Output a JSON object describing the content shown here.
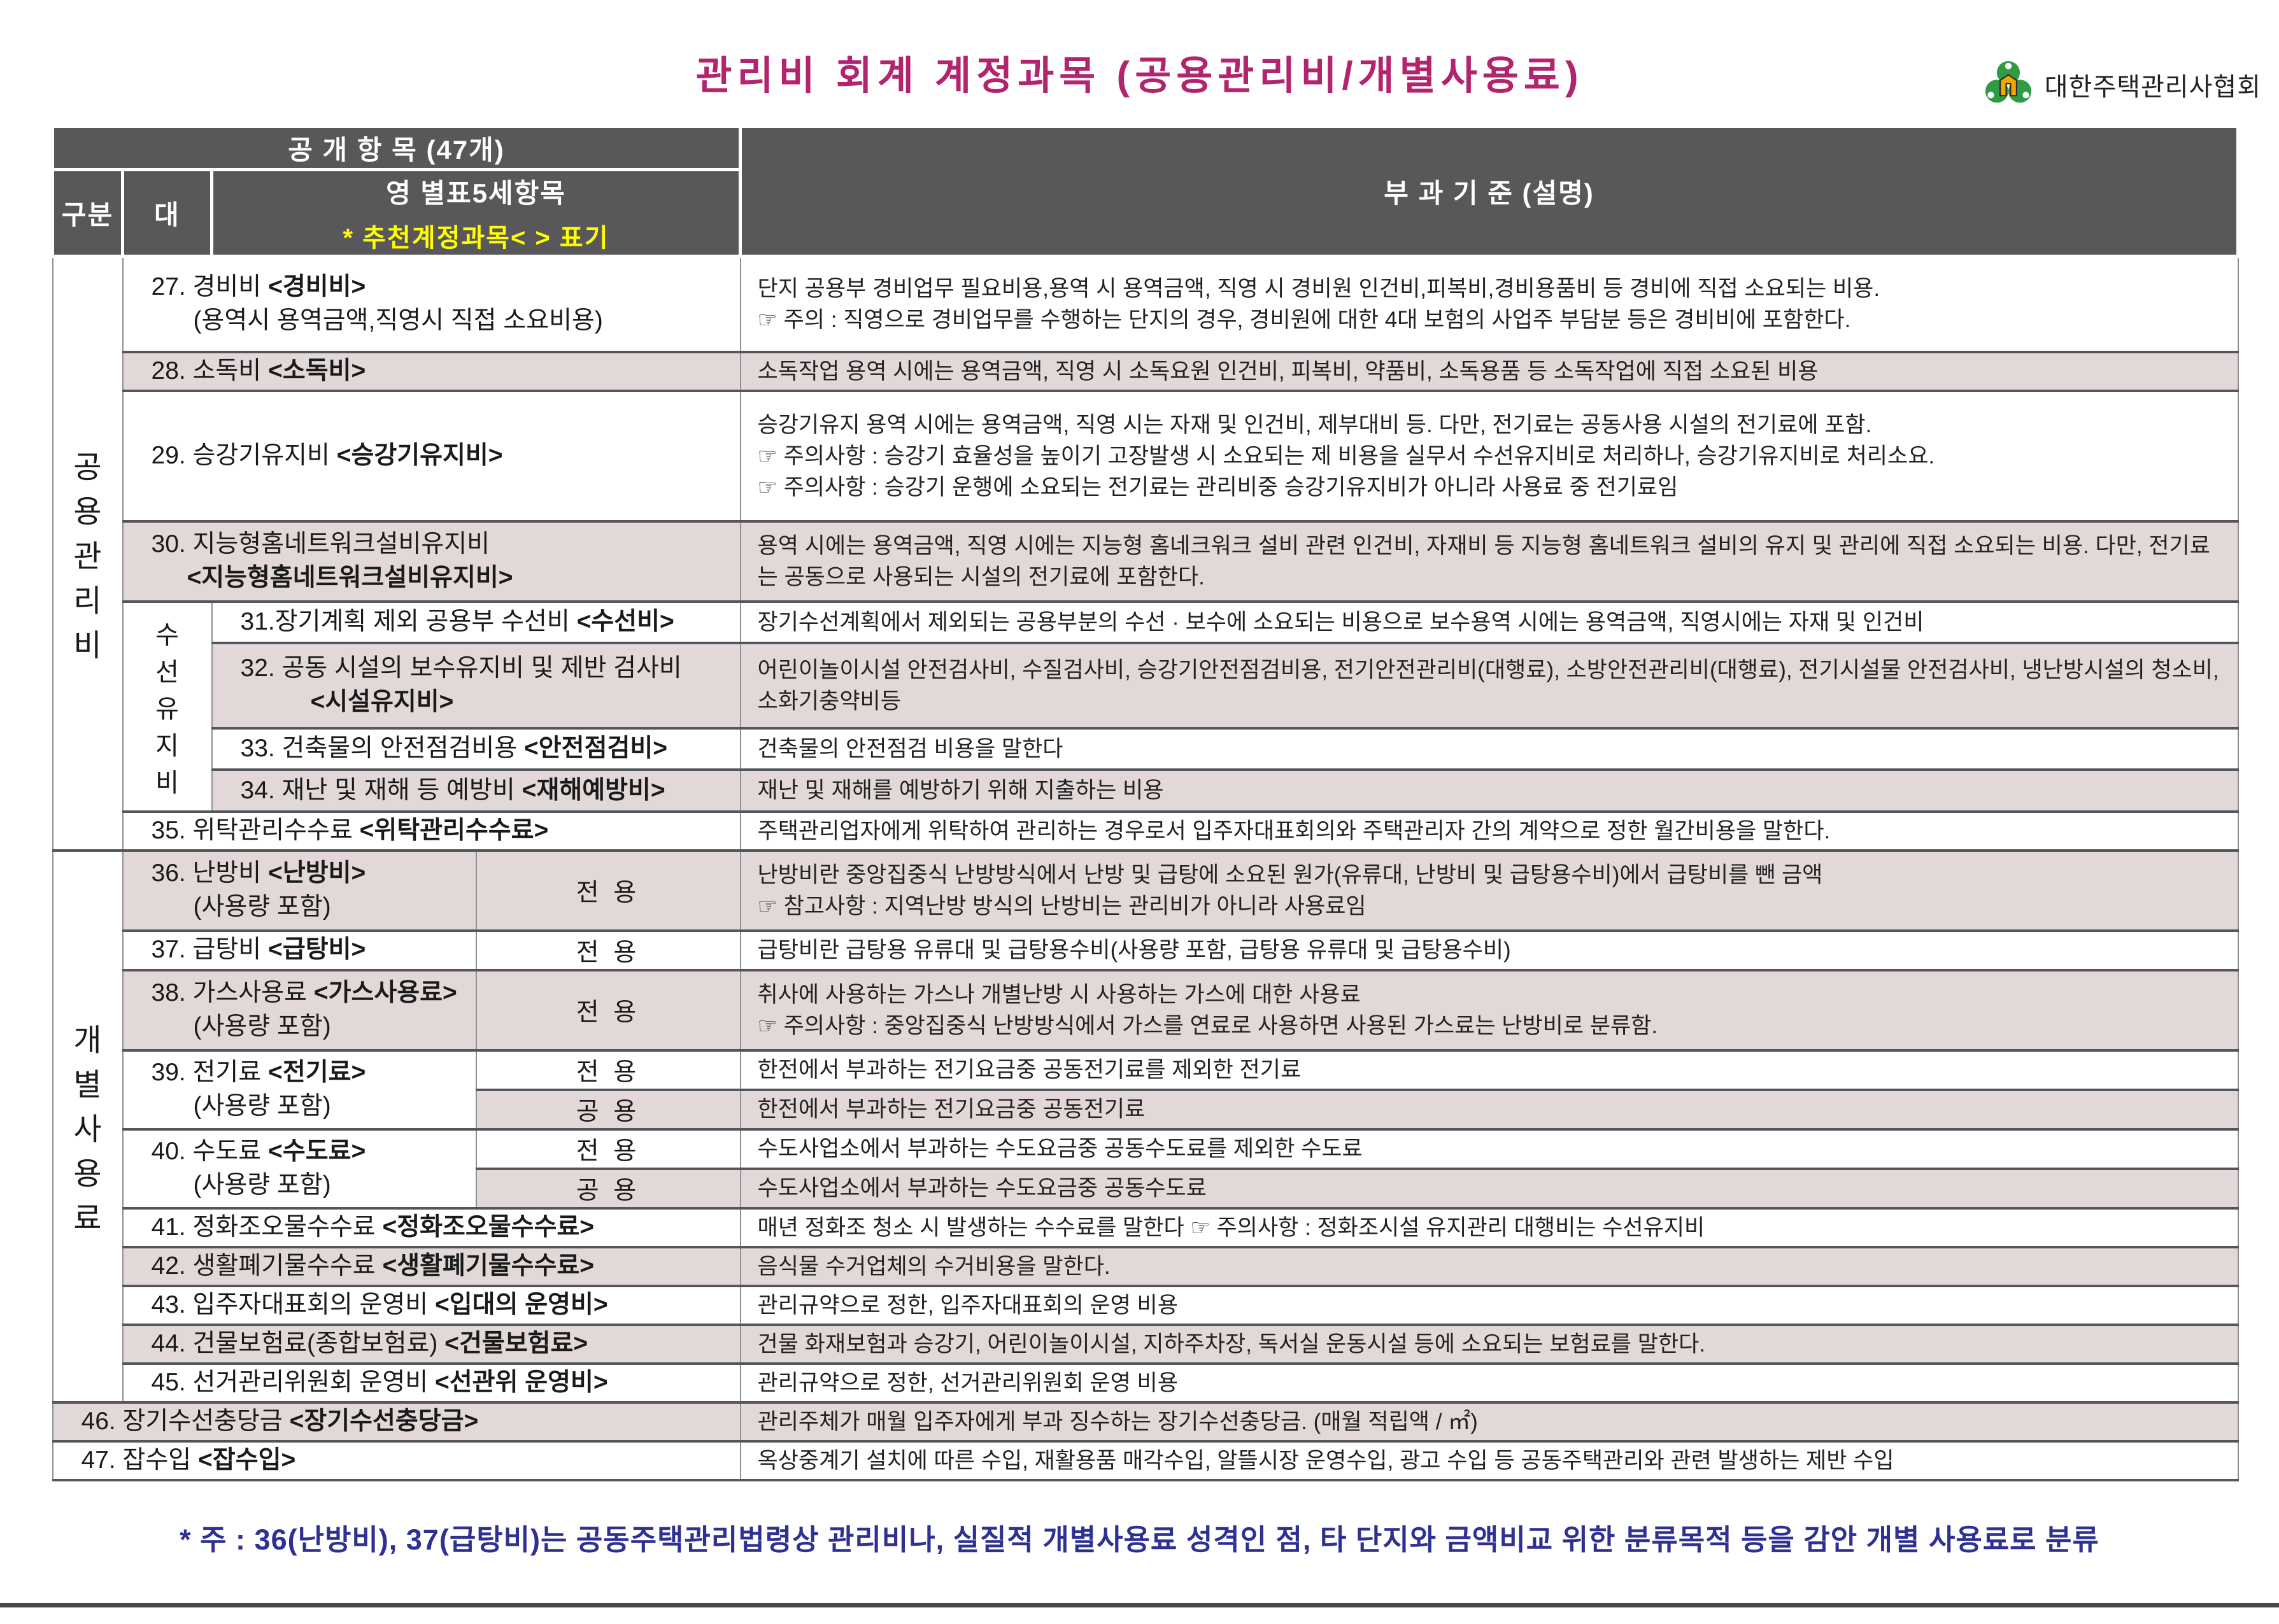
{
  "title": "관리비 회계 계정과목 (공용관리비/개별사용료)",
  "logo": {
    "org": "대한주택관리사협회"
  },
  "header": {
    "open_items": "공 개 항 목 (47개)",
    "col_gubun": "구분",
    "col_dae": "대",
    "col_detail_line1": "영  별표5세항목",
    "col_detail_line2": "* 추천계정과목<  > 표기",
    "col_basis": "부  과  기  준 (설명)"
  },
  "groups": {
    "common": "공용관리비",
    "individual": "개별사용료",
    "repair": "수선유지비"
  },
  "usage": {
    "exclusive": "전  용",
    "common": "공  용"
  },
  "rows": {
    "r27": {
      "label": "27. 경비비",
      "tag": "<경비비>",
      "sub": "(용역시 용역금액,직영시 직접 소요비용)",
      "desc1": "단지 공용부 경비업무 필요비용,용역 시 용역금액, 직영 시 경비원 인건비,피복비,경비용품비 등 경비에 직접 소요되는 비용.",
      "desc2": "☞ 주의 : 직영으로 경비업무를 수행하는 단지의 경우, 경비원에 대한 4대 보험의 사업주 부담분 등은 경비비에 포함한다."
    },
    "r28": {
      "label": "28. 소독비",
      "tag": "<소독비>",
      "desc1": "소독작업 용역 시에는 용역금액, 직영 시 소독요원 인건비, 피복비, 약품비, 소독용품 등 소독작업에 직접 소요된 비용"
    },
    "r29": {
      "label": "29. 승강기유지비",
      "tag": "<승강기유지비>",
      "desc1": "승강기유지 용역 시에는 용역금액, 직영 시는 자재 및 인건비, 제부대비 등. 다만, 전기료는 공동사용 시설의 전기료에 포함.",
      "desc2": "☞ 주의사항 : 승강기 효율성을 높이기 고장발생 시 소요되는 제 비용을 실무서 수선유지비로 처리하나, 승강기유지비로 처리소요.",
      "desc3": "☞ 주의사항 : 승강기 운행에 소요되는 전기료는 관리비중 승강기유지비가 아니라 사용료 중 전기료임"
    },
    "r30": {
      "label": "30. 지능형홈네트워크설비유지비",
      "tag2": "<지능형홈네트워크설비유지비>",
      "desc1": "용역 시에는 용역금액, 직영 시에는 지능형 홈네크워크 설비 관련 인건비, 자재비 등 지능형 홈네트워크 설비의 유지 및 관리에 직접 소요되는 비용. 다만, 전기료는 공동으로 사용되는 시설의 전기료에 포함한다."
    },
    "r31": {
      "label": "31.장기계획 제외 공용부 수선비",
      "tag": "<수선비>",
      "desc1": "장기수선계획에서 제외되는 공용부분의 수선 · 보수에 소요되는 비용으로 보수용역 시에는 용역금액, 직영시에는 자재 및 인건비"
    },
    "r32": {
      "label": "32. 공동 시설의 보수유지비 및 제반 검사비",
      "tag2": "<시설유지비>",
      "desc1": "어린이놀이시설 안전검사비, 수질검사비, 승강기안전점검비용, 전기안전관리비(대행료), 소방안전관리비(대행료), 전기시설물 안전검사비, 냉난방시설의 청소비, 소화기충약비등"
    },
    "r33": {
      "label": "33. 건축물의 안전점검비용",
      "tag": "<안전점검비>",
      "desc1": "건축물의 안전점검 비용을 말한다"
    },
    "r34": {
      "label": "34. 재난 및 재해 등 예방비",
      "tag": "<재해예방비>",
      "desc1": "재난 및 재해를 예방하기 위해 지출하는 비용"
    },
    "r35": {
      "label": "35. 위탁관리수수료",
      "tag": "<위탁관리수수료>",
      "desc1": "주택관리업자에게 위탁하여 관리하는 경우로서 입주자대표회의와 주택관리자 간의 계약으로 정한 월간비용을 말한다."
    },
    "r36": {
      "label": "36. 난방비",
      "tag": "<난방비>",
      "sub": "(사용량 포함)",
      "desc1": "난방비란 중앙집중식 난방방식에서 난방 및 급탕에 소요된 원가(유류대, 난방비 및 급탕용수비)에서 급탕비를 뺀 금액",
      "desc2": "☞ 참고사항 : 지역난방 방식의 난방비는 관리비가 아니라 사용료임"
    },
    "r37": {
      "label": "37. 급탕비",
      "tag": "<급탕비>",
      "desc1": "급탕비란 급탕용 유류대 및 급탕용수비(사용량 포함, 급탕용 유류대 및 급탕용수비)"
    },
    "r38": {
      "label": "38. 가스사용료",
      "tag": "<가스사용료>",
      "sub": "(사용량 포함)",
      "desc1": "취사에 사용하는 가스나 개별난방 시 사용하는 가스에 대한 사용료",
      "desc2": "☞ 주의사항 : 중앙집중식 난방방식에서 가스를 연료로 사용하면 사용된 가스료는 난방비로 분류함."
    },
    "r39": {
      "label": "39. 전기료",
      "tag": "<전기료>",
      "sub": "(사용량 포함)",
      "desc_exclusive": "한전에서 부과하는 전기요금중 공동전기료를 제외한 전기료",
      "desc_common": "한전에서 부과하는 전기요금중 공동전기료"
    },
    "r40": {
      "label": "40. 수도료",
      "tag": "<수도료>",
      "sub": "(사용량 포함)",
      "desc_exclusive": "수도사업소에서 부과하는 수도요금중 공동수도료를 제외한 수도료",
      "desc_common": "수도사업소에서 부과하는 수도요금중 공동수도료"
    },
    "r41": {
      "label": "41. 정화조오물수수료",
      "tag": "<정화조오물수수료>",
      "desc1": "매년 정화조 청소 시 발생하는 수수료를 말한다  ☞ 주의사항 : 정화조시설 유지관리 대행비는 수선유지비"
    },
    "r42": {
      "label": "42. 생활폐기물수수료",
      "tag": "<생활폐기물수수료>",
      "desc1": "음식물 수거업체의 수거비용을 말한다."
    },
    "r43": {
      "label": "43. 입주자대표회의 운영비",
      "tag": "<입대의 운영비>",
      "desc1": "관리규약으로 정한, 입주자대표회의 운영 비용"
    },
    "r44": {
      "label": "44. 건물보험료(종합보험료)",
      "tag": "<건물보험료>",
      "desc1": "건물 화재보험과 승강기, 어린이놀이시설, 지하주차장, 독서실 운동시설 등에 소요되는 보험료를 말한다."
    },
    "r45": {
      "label": "45. 선거관리위원회 운영비",
      "tag": "<선관위 운영비>",
      "desc1": "관리규약으로 정한, 선거관리위원회 운영 비용"
    },
    "r46": {
      "label": "46. 장기수선충당금",
      "tag": "<장기수선충당금>",
      "desc1": "관리주체가 매월 입주자에게 부과 징수하는 장기수선충당금. (매월 적립액 / ㎡)"
    },
    "r47": {
      "label": "47. 잡수입",
      "tag": "<잡수입>",
      "desc1": "옥상중계기 설치에 따른 수입, 재활용품 매각수입, 알뜰시장 운영수입, 광고 수입 등 공동주택관리와 관련 발생하는 제반 수입"
    }
  },
  "footnote": "* 주 : 36(난방비), 37(급탕비)는 공동주택관리법령상 관리비나, 실질적 개별사용료 성격인 점, 타 단지와 금액비교 위한 분류목적 등을 감안 개별 사용료로 분류",
  "colors": {
    "title_magenta": "#b2246e",
    "header_gray": "#58585a",
    "row_alt_pink": "#e2d8d8",
    "highlight_yellow": "#ffff00",
    "note_blue": "#2e3192",
    "logo_green": "#2f9b43",
    "logo_yellow": "#f0a800"
  }
}
